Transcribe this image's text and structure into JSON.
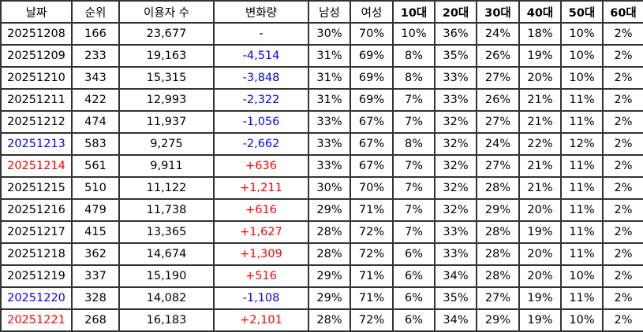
{
  "colors": {
    "negative": "#0000ff",
    "positive": "#ff0000",
    "saturday": "#0000ff",
    "sunday": "#ff0000"
  },
  "headers": [
    "날짜",
    "순위",
    "이용자 수",
    "변화량",
    "남성",
    "여성",
    "10대",
    "20대",
    "30대",
    "40대",
    "50대",
    "60대"
  ],
  "rows": [
    {
      "date": "20251208",
      "date_color": "",
      "rank": "166",
      "users": "23,677",
      "change": "-",
      "change_color": "",
      "male": "30%",
      "female": "70%",
      "a10": "10%",
      "a20": "36%",
      "a30": "24%",
      "a40": "18%",
      "a50": "10%",
      "a60": "2%"
    },
    {
      "date": "20251209",
      "date_color": "",
      "rank": "233",
      "users": "19,163",
      "change": "-4,514",
      "change_color": "blue",
      "male": "31%",
      "female": "69%",
      "a10": "8%",
      "a20": "35%",
      "a30": "26%",
      "a40": "19%",
      "a50": "10%",
      "a60": "2%"
    },
    {
      "date": "20251210",
      "date_color": "",
      "rank": "343",
      "users": "15,315",
      "change": "-3,848",
      "change_color": "blue",
      "male": "31%",
      "female": "69%",
      "a10": "8%",
      "a20": "33%",
      "a30": "27%",
      "a40": "20%",
      "a50": "10%",
      "a60": "2%"
    },
    {
      "date": "20251211",
      "date_color": "",
      "rank": "422",
      "users": "12,993",
      "change": "-2,322",
      "change_color": "blue",
      "male": "31%",
      "female": "69%",
      "a10": "7%",
      "a20": "33%",
      "a30": "26%",
      "a40": "21%",
      "a50": "11%",
      "a60": "2%"
    },
    {
      "date": "20251212",
      "date_color": "",
      "rank": "474",
      "users": "11,937",
      "change": "-1,056",
      "change_color": "blue",
      "male": "33%",
      "female": "67%",
      "a10": "7%",
      "a20": "32%",
      "a30": "27%",
      "a40": "21%",
      "a50": "11%",
      "a60": "2%"
    },
    {
      "date": "20251213",
      "date_color": "blue",
      "rank": "583",
      "users": "9,275",
      "change": "-2,662",
      "change_color": "blue",
      "male": "33%",
      "female": "67%",
      "a10": "8%",
      "a20": "32%",
      "a30": "24%",
      "a40": "22%",
      "a50": "12%",
      "a60": "2%"
    },
    {
      "date": "20251214",
      "date_color": "red",
      "rank": "561",
      "users": "9,911",
      "change": "+636",
      "change_color": "red",
      "male": "33%",
      "female": "67%",
      "a10": "7%",
      "a20": "32%",
      "a30": "27%",
      "a40": "21%",
      "a50": "11%",
      "a60": "2%"
    },
    {
      "date": "20251215",
      "date_color": "",
      "rank": "510",
      "users": "11,122",
      "change": "+1,211",
      "change_color": "red",
      "male": "30%",
      "female": "70%",
      "a10": "7%",
      "a20": "32%",
      "a30": "28%",
      "a40": "21%",
      "a50": "11%",
      "a60": "2%"
    },
    {
      "date": "20251216",
      "date_color": "",
      "rank": "479",
      "users": "11,738",
      "change": "+616",
      "change_color": "red",
      "male": "29%",
      "female": "71%",
      "a10": "7%",
      "a20": "32%",
      "a30": "29%",
      "a40": "20%",
      "a50": "11%",
      "a60": "2%"
    },
    {
      "date": "20251217",
      "date_color": "",
      "rank": "415",
      "users": "13,365",
      "change": "+1,627",
      "change_color": "red",
      "male": "28%",
      "female": "72%",
      "a10": "7%",
      "a20": "33%",
      "a30": "28%",
      "a40": "19%",
      "a50": "11%",
      "a60": "2%"
    },
    {
      "date": "20251218",
      "date_color": "",
      "rank": "362",
      "users": "14,674",
      "change": "+1,309",
      "change_color": "red",
      "male": "28%",
      "female": "72%",
      "a10": "6%",
      "a20": "33%",
      "a30": "28%",
      "a40": "20%",
      "a50": "11%",
      "a60": "2%"
    },
    {
      "date": "20251219",
      "date_color": "",
      "rank": "337",
      "users": "15,190",
      "change": "+516",
      "change_color": "red",
      "male": "29%",
      "female": "71%",
      "a10": "6%",
      "a20": "34%",
      "a30": "28%",
      "a40": "20%",
      "a50": "10%",
      "a60": "2%"
    },
    {
      "date": "20251220",
      "date_color": "blue",
      "rank": "328",
      "users": "14,082",
      "change": "-1,108",
      "change_color": "blue",
      "male": "29%",
      "female": "71%",
      "a10": "6%",
      "a20": "35%",
      "a30": "27%",
      "a40": "19%",
      "a50": "11%",
      "a60": "2%"
    },
    {
      "date": "20251221",
      "date_color": "red",
      "rank": "268",
      "users": "16,183",
      "change": "+2,101",
      "change_color": "red",
      "male": "28%",
      "female": "72%",
      "a10": "6%",
      "a20": "34%",
      "a30": "29%",
      "a40": "19%",
      "a50": "10%",
      "a60": "2%"
    }
  ]
}
